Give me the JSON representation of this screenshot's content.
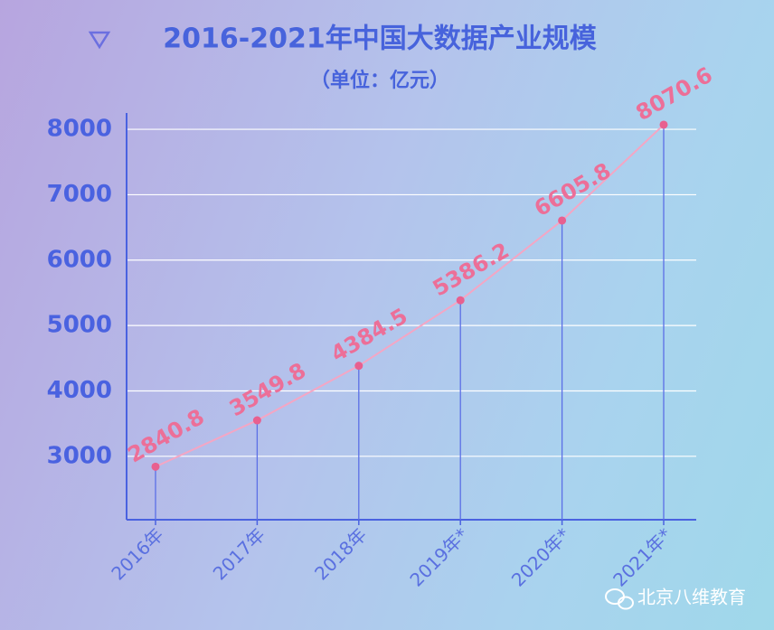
{
  "chart_data": {
    "type": "line",
    "title": "2016-2021年中国大数据产业规模",
    "subtitle": "（单位：亿元）",
    "categories": [
      "2016年",
      "2017年",
      "2018年",
      "2019年*",
      "2020年*",
      "2021年*"
    ],
    "values": [
      2840.8,
      3549.8,
      4384.5,
      5386.2,
      6605.8,
      8070.6
    ],
    "color": "#f4a6c4",
    "marker_color": "#e8608f",
    "label_color": "#ec6f98",
    "stem_color": "#5b6fe6",
    "ylim": [
      2030,
      8250
    ],
    "yticks": [
      3000,
      4000,
      5000,
      6000,
      7000,
      8000
    ],
    "grid": true
  },
  "watermark": "北京八维教育"
}
